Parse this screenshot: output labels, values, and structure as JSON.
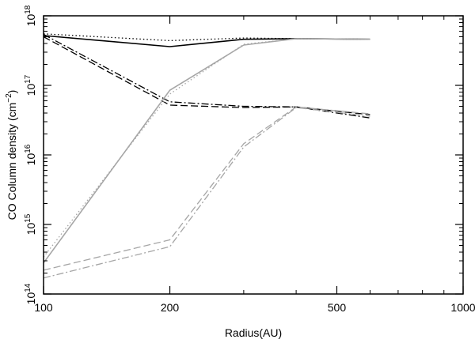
{
  "chart_data": {
    "type": "line",
    "xlabel": "Radius(AU)",
    "ylabel": {
      "prefix": "CO Column density (cm",
      "exponent": "−2",
      "suffix": ")"
    },
    "xscale": "log",
    "yscale": "log",
    "xlim": [
      100,
      1000
    ],
    "ylim": [
      100000000000000.0,
      1e+18
    ],
    "grid": false,
    "x_ticks": [
      {
        "value": 100,
        "label": "100"
      },
      {
        "value": 200,
        "label": "200"
      },
      {
        "value": 500,
        "label": "500"
      },
      {
        "value": 1000,
        "label": "1000"
      }
    ],
    "y_ticks": [
      {
        "value": 100000000000000.0,
        "base": "10",
        "exp": "14"
      },
      {
        "value": 1000000000000000.0,
        "base": "10",
        "exp": "15"
      },
      {
        "value": 1e+16,
        "base": "10",
        "exp": "16"
      },
      {
        "value": 1e+17,
        "base": "10",
        "exp": "17"
      },
      {
        "value": 1e+18,
        "base": "10",
        "exp": "18"
      }
    ],
    "series": [
      {
        "color": "#000000",
        "dash": "solid",
        "width": 1.6,
        "x": [
          100,
          200,
          300,
          400,
          600
        ],
        "y": [
          5.2e+17,
          3.6e+17,
          4.6e+17,
          4.7e+17,
          4.6e+17
        ]
      },
      {
        "color": "#000000",
        "dash": "dotted",
        "width": 1.3,
        "x": [
          100,
          200,
          300,
          400,
          600
        ],
        "y": [
          5.5e+17,
          4.4e+17,
          4.8e+17,
          4.7e+17,
          4.6e+17
        ]
      },
      {
        "color": "#000000",
        "dash": "dashed",
        "width": 1.3,
        "x": [
          100,
          200,
          300,
          400,
          600
        ],
        "y": [
          5e+17,
          5.2e+16,
          4.8e+16,
          4.9e+16,
          3.8e+16
        ]
      },
      {
        "color": "#000000",
        "dash": "dashdot",
        "width": 1.3,
        "x": [
          100,
          200,
          300,
          400,
          600
        ],
        "y": [
          5.4e+17,
          5.8e+16,
          5e+16,
          4.9e+16,
          3.4e+16
        ]
      },
      {
        "color": "#a6a6a6",
        "dash": "solid",
        "width": 1.6,
        "x": [
          100,
          200,
          300,
          400,
          600
        ],
        "y": [
          280000000000000.0,
          8.5e+16,
          3.8e+17,
          4.7e+17,
          4.6e+17
        ]
      },
      {
        "color": "#a6a6a6",
        "dash": "dotted",
        "width": 1.3,
        "x": [
          100,
          200,
          300,
          400,
          600
        ],
        "y": [
          340000000000000.0,
          7.5e+16,
          3.9e+17,
          4.7e+17,
          4.6e+17
        ]
      },
      {
        "color": "#a6a6a6",
        "dash": "dashed",
        "width": 1.3,
        "x": [
          100,
          200,
          300,
          400,
          600
        ],
        "y": [
          220000000000000.0,
          600000000000000.0,
          1.45e+16,
          4.9e+16,
          3.9e+16
        ]
      },
      {
        "color": "#a6a6a6",
        "dash": "dashdot",
        "width": 1.3,
        "x": [
          100,
          200,
          300,
          400,
          600
        ],
        "y": [
          170000000000000.0,
          480000000000000.0,
          1.3e+16,
          4.8e+16,
          3.6e+16
        ]
      }
    ]
  }
}
